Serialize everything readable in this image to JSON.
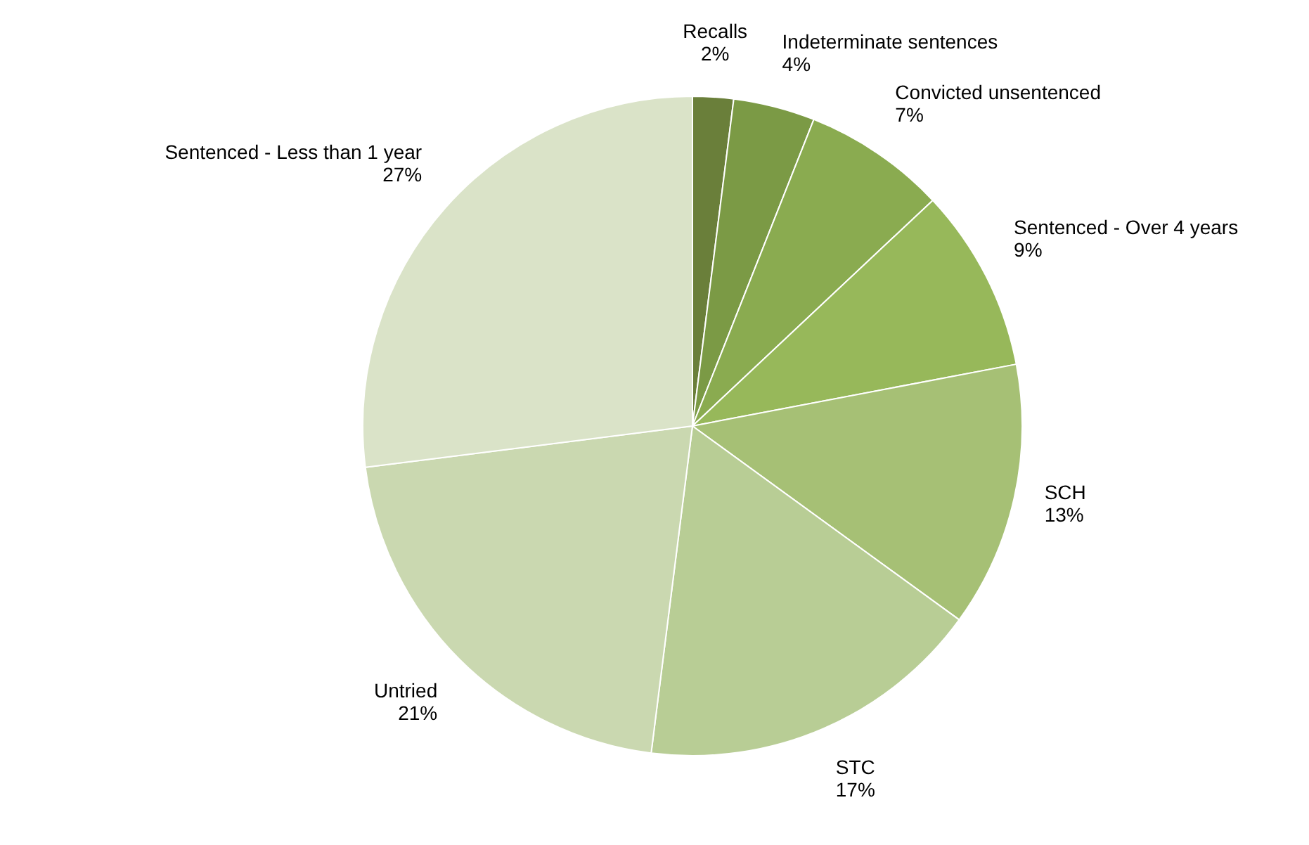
{
  "chart_data": {
    "type": "pie",
    "categories": [
      "Recalls",
      "Indeterminate sentences",
      "Convicted unsentenced",
      "Sentenced - Over 4 years",
      "SCH",
      "STC",
      "Untried",
      "Sentenced - Less than 1 year"
    ],
    "values": [
      2,
      4,
      7,
      9,
      13,
      17,
      21,
      27
    ],
    "value_labels": [
      "2%",
      "4%",
      "7%",
      "9%",
      "13%",
      "17%",
      "21%",
      "27%"
    ],
    "colors": [
      "#6a7f3a",
      "#7b9a45",
      "#8aab50",
      "#97b85a",
      "#a6c075",
      "#b8cd95",
      "#cad8b0",
      "#dae3c8"
    ],
    "legend": false
  }
}
